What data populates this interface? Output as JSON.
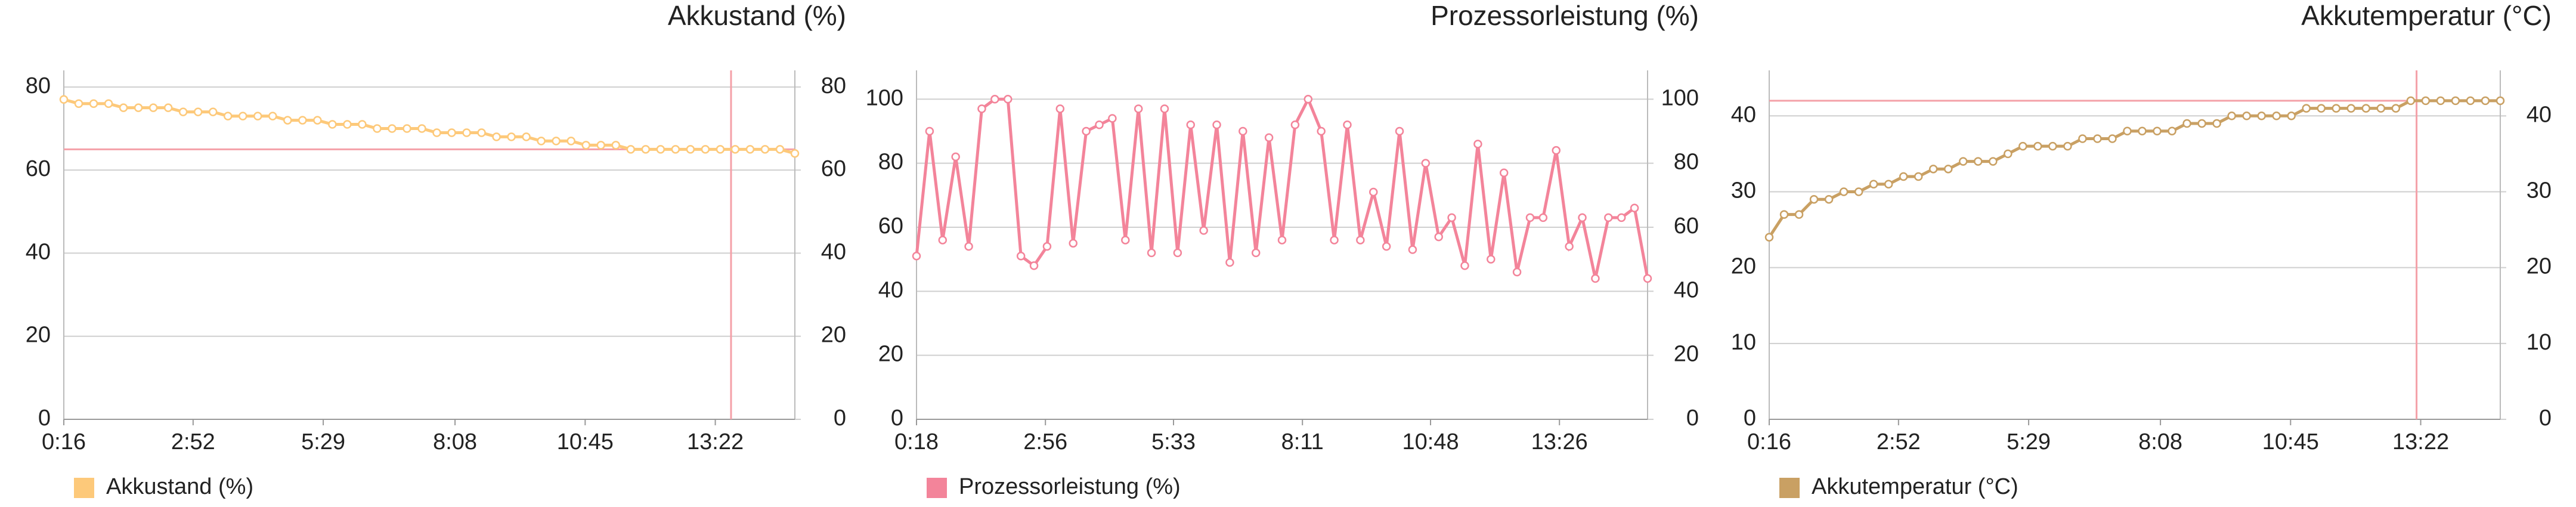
{
  "chart_data": [
    {
      "type": "line",
      "title": "Akkustand (%)",
      "x": [
        16,
        34,
        52,
        70,
        88,
        106,
        124,
        142,
        160,
        178,
        196,
        214,
        232,
        250,
        268,
        286,
        304,
        322,
        340,
        358,
        376,
        394,
        412,
        430,
        448,
        466,
        484,
        502,
        520,
        538,
        556,
        574,
        592,
        610,
        628,
        646,
        664,
        682,
        700,
        718,
        736,
        754,
        772,
        790,
        808,
        826,
        844,
        862,
        880,
        898
      ],
      "series": [
        {
          "name": "Akkustand (%)",
          "color": "#fdc97a",
          "values": [
            77,
            76,
            76,
            76,
            75,
            75,
            75,
            75,
            74,
            74,
            74,
            73,
            73,
            73,
            73,
            72,
            72,
            72,
            71,
            71,
            71,
            70,
            70,
            70,
            70,
            69,
            69,
            69,
            69,
            68,
            68,
            68,
            67,
            67,
            67,
            66,
            66,
            66,
            65,
            65,
            65,
            65,
            65,
            65,
            65,
            65,
            65,
            65,
            65,
            64
          ]
        }
      ],
      "xlim": [
        16,
        898
      ],
      "xticks": [
        {
          "value": 16,
          "label": "0:16"
        },
        {
          "value": 172,
          "label": "2:52"
        },
        {
          "value": 329,
          "label": "5:29"
        },
        {
          "value": 488,
          "label": "8:08"
        },
        {
          "value": 645,
          "label": "10:45"
        },
        {
          "value": 802,
          "label": "13:22"
        }
      ],
      "ylim": [
        0,
        84
      ],
      "yticks": [
        0,
        20,
        40,
        60,
        80
      ],
      "y2lim": [
        0,
        84
      ],
      "y2ticks": [
        0,
        20,
        40,
        60,
        80
      ],
      "ref_y": 65,
      "ref_x": 821,
      "ref_color": "#f4a0a8",
      "grid": true
    },
    {
      "type": "line",
      "title": "Prozessorleistung (%)",
      "x": [
        18,
        34,
        50,
        66,
        82,
        98,
        114,
        130,
        146,
        162,
        178,
        194,
        210,
        226,
        242,
        258,
        274,
        290,
        306,
        322,
        338,
        354,
        370,
        386,
        402,
        418,
        434,
        450,
        466,
        482,
        498,
        514,
        530,
        546,
        562,
        578,
        594,
        610,
        626,
        642,
        658,
        674,
        690,
        706,
        722,
        738,
        754,
        770,
        786,
        802,
        818,
        834,
        850,
        866,
        882,
        898,
        914
      ],
      "series": [
        {
          "name": "Prozessorleistung (%)",
          "color": "#f3849a",
          "values": [
            51,
            90,
            56,
            82,
            54,
            97,
            100,
            100,
            51,
            48,
            54,
            97,
            55,
            90,
            92,
            94,
            56,
            97,
            52,
            97,
            52,
            92,
            59,
            92,
            49,
            90,
            52,
            88,
            56,
            92,
            100,
            90,
            56,
            92,
            56,
            71,
            54,
            90,
            53,
            80,
            57,
            63,
            48,
            86,
            50,
            77,
            46,
            63,
            63,
            84,
            54,
            63,
            44,
            63,
            63,
            66,
            44
          ]
        }
      ],
      "xlim": [
        18,
        914
      ],
      "xticks": [
        {
          "value": 18,
          "label": "0:18"
        },
        {
          "value": 176,
          "label": "2:56"
        },
        {
          "value": 333,
          "label": "5:33"
        },
        {
          "value": 491,
          "label": "8:11"
        },
        {
          "value": 648,
          "label": "10:48"
        },
        {
          "value": 806,
          "label": "13:26"
        }
      ],
      "ylim": [
        0,
        109
      ],
      "yticks": [
        0,
        20,
        40,
        60,
        80,
        100
      ],
      "y2lim": [
        0,
        109
      ],
      "y2ticks": [
        0,
        20,
        40,
        60,
        80,
        100
      ],
      "grid": true
    },
    {
      "type": "line",
      "title": "Akkutemperatur (°C)",
      "x": [
        16,
        34,
        52,
        70,
        88,
        106,
        124,
        142,
        160,
        178,
        196,
        214,
        232,
        250,
        268,
        286,
        304,
        322,
        340,
        358,
        376,
        394,
        412,
        430,
        448,
        466,
        484,
        502,
        520,
        538,
        556,
        574,
        592,
        610,
        628,
        646,
        664,
        682,
        700,
        718,
        736,
        754,
        772,
        790,
        808,
        826,
        844,
        862,
        880,
        898
      ],
      "series": [
        {
          "name": "Akkutemperatur (°C)",
          "color": "#c9a063",
          "values": [
            24,
            27,
            27,
            29,
            29,
            30,
            30,
            31,
            31,
            32,
            32,
            33,
            33,
            34,
            34,
            34,
            35,
            36,
            36,
            36,
            36,
            37,
            37,
            37,
            38,
            38,
            38,
            38,
            39,
            39,
            39,
            40,
            40,
            40,
            40,
            40,
            41,
            41,
            41,
            41,
            41,
            41,
            41,
            42,
            42,
            42,
            42,
            42,
            42,
            42
          ]
        }
      ],
      "xlim": [
        16,
        898
      ],
      "xticks": [
        {
          "value": 16,
          "label": "0:16"
        },
        {
          "value": 172,
          "label": "2:52"
        },
        {
          "value": 329,
          "label": "5:29"
        },
        {
          "value": 488,
          "label": "8:08"
        },
        {
          "value": 645,
          "label": "10:45"
        },
        {
          "value": 802,
          "label": "13:22"
        }
      ],
      "ylim": [
        0,
        46
      ],
      "yticks": [
        0,
        10,
        20,
        30,
        40
      ],
      "y2lim": [
        0,
        46
      ],
      "y2ticks": [
        0,
        10,
        20,
        30,
        40
      ],
      "ref_y": 42,
      "ref_x": 797,
      "ref_color": "#f4a0a8",
      "grid": true
    }
  ]
}
